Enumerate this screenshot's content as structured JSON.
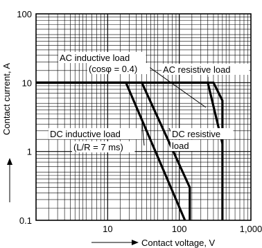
{
  "chart_data": {
    "type": "line",
    "xlabel": "Contact voltage, V",
    "ylabel": "Contact current, A",
    "x_scale": "log",
    "y_scale": "log",
    "xlim": [
      1,
      1000
    ],
    "ylim": [
      0.1,
      100
    ],
    "x_ticks": [
      {
        "value": 10,
        "label": "10"
      },
      {
        "value": 100,
        "label": "100"
      },
      {
        "value": 1000,
        "label": "1,000"
      }
    ],
    "y_ticks": [
      {
        "value": 0.1,
        "label": "0.1"
      },
      {
        "value": 1,
        "label": "1"
      },
      {
        "value": 10,
        "label": "10"
      },
      {
        "value": 100,
        "label": "100"
      }
    ],
    "grid": true,
    "series": [
      {
        "name": "AC inductive load (cosφ = 0.4)",
        "label_lines": [
          "AC inductive load",
          "(cosφ = 0.4)"
        ],
        "points": [
          [
            1,
            10
          ],
          [
            250,
            10
          ],
          [
            400,
            1.3
          ]
        ]
      },
      {
        "name": "AC resistive load",
        "label_lines": [
          "AC resistive load"
        ],
        "points": [
          [
            1,
            10
          ],
          [
            300,
            10
          ],
          [
            400,
            5.5
          ],
          [
            400,
            0.1
          ]
        ]
      },
      {
        "name": "DC inductive load (L/R = 7 ms)",
        "label_lines": [
          "DC  inductive load",
          "(L/R = 7 ms)"
        ],
        "points": [
          [
            1,
            10
          ],
          [
            18,
            10
          ],
          [
            120,
            0.1
          ]
        ]
      },
      {
        "name": "DC resistive load",
        "label_lines": [
          "DC resistive",
          "load"
        ],
        "points": [
          [
            1,
            10
          ],
          [
            30,
            10
          ],
          [
            140,
            0.3
          ],
          [
            140,
            0.1
          ]
        ]
      }
    ]
  }
}
